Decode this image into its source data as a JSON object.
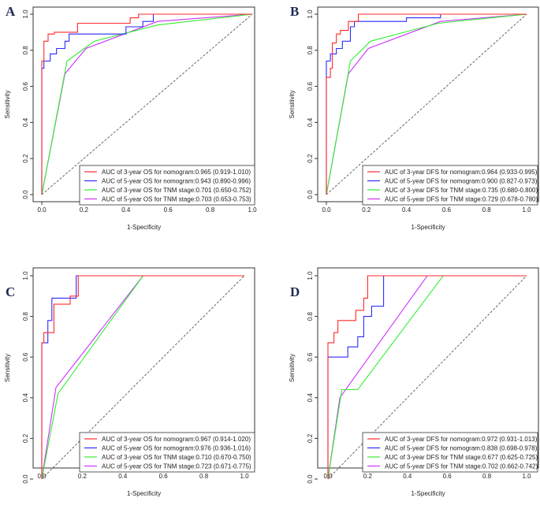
{
  "colors": {
    "red": "#ff2a2a",
    "blue": "#2a2aff",
    "green": "#33ee33",
    "purple": "#cc33ff",
    "diagonal": "#444444"
  },
  "chart_data": [
    {
      "panel": "A",
      "type": "line",
      "xlabel": "1-Specificity",
      "ylabel": "Sensitivity",
      "xlim": [
        0,
        1
      ],
      "ylim": [
        0,
        1
      ],
      "xticks": [
        "0.0",
        "0.2",
        "0.4",
        "0.6",
        "0.8",
        "1.0"
      ],
      "yticks": [
        "0.0",
        "0.2",
        "0.4",
        "0.6",
        "0.8",
        "1.0"
      ],
      "reference_line": [
        [
          0,
          0
        ],
        [
          1,
          1
        ]
      ],
      "legend_position": "bottom-right",
      "series": [
        {
          "name": "AUC of 3-year OS for nomogram:0.965 (0.919-1.010)",
          "color": "red",
          "x": [
            0,
            0,
            0.01,
            0.01,
            0.03,
            0.03,
            0.06,
            0.06,
            0.17,
            0.17,
            0.42,
            0.42,
            0.46,
            0.46,
            1.0
          ],
          "y": [
            0,
            0.74,
            0.74,
            0.85,
            0.85,
            0.89,
            0.89,
            0.9,
            0.9,
            0.95,
            0.95,
            0.98,
            0.98,
            1.0,
            1.0
          ]
        },
        {
          "name": "AUC of 5-year OS for nomogram:0.943 (0.890-0.996)",
          "color": "blue",
          "x": [
            0,
            0,
            0.01,
            0.01,
            0.04,
            0.04,
            0.07,
            0.07,
            0.11,
            0.11,
            0.13,
            0.13,
            0.4,
            0.4,
            0.48,
            0.48,
            0.53,
            0.53,
            1.0
          ],
          "y": [
            0,
            0.7,
            0.7,
            0.74,
            0.74,
            0.78,
            0.78,
            0.81,
            0.81,
            0.85,
            0.85,
            0.89,
            0.89,
            0.93,
            0.93,
            0.96,
            0.96,
            1.0,
            1.0
          ]
        },
        {
          "name": "AUC of 3-year OS for TNM stage:0.701 (0.650-0.752)",
          "color": "green",
          "x": [
            0,
            0.12,
            0.25,
            0.55,
            1.0
          ],
          "y": [
            0,
            0.74,
            0.85,
            0.94,
            1.0
          ]
        },
        {
          "name": "AUC of 5-year OS for TNM stage:0.703 (0.653-0.753)",
          "color": "purple",
          "x": [
            0,
            0.11,
            0.21,
            0.55,
            1.0
          ],
          "y": [
            0,
            0.67,
            0.81,
            0.96,
            1.0
          ]
        }
      ]
    },
    {
      "panel": "B",
      "type": "line",
      "xlabel": "1-Specificity",
      "ylabel": "Sensitivity",
      "xlim": [
        0,
        1
      ],
      "ylim": [
        0,
        1
      ],
      "xticks": [
        "0.0",
        "0.2",
        "0.4",
        "0.6",
        "0.8",
        "1.0"
      ],
      "yticks": [
        "0.0",
        "0.2",
        "0.4",
        "0.6",
        "0.8",
        "1.0"
      ],
      "reference_line": [
        [
          0,
          0
        ],
        [
          1,
          1
        ]
      ],
      "legend_position": "bottom-right",
      "series": [
        {
          "name": "AUC of 3-year DFS for nomogram:0.964 (0.933-0.995)",
          "color": "red",
          "x": [
            0,
            0,
            0.02,
            0.02,
            0.03,
            0.03,
            0.05,
            0.05,
            0.07,
            0.07,
            0.11,
            0.11,
            0.16,
            0.16,
            1.0
          ],
          "y": [
            0,
            0.65,
            0.65,
            0.7,
            0.7,
            0.84,
            0.84,
            0.89,
            0.89,
            0.91,
            0.91,
            0.96,
            0.96,
            1.0,
            1.0
          ]
        },
        {
          "name": "AUC of 5-year DFS for nomogram:0.900 (0.827-0.973)",
          "color": "blue",
          "x": [
            0,
            0,
            0.02,
            0.02,
            0.05,
            0.05,
            0.08,
            0.08,
            0.12,
            0.12,
            0.14,
            0.14,
            0.4,
            0.4,
            0.57,
            0.57,
            1.0
          ],
          "y": [
            0,
            0.74,
            0.74,
            0.78,
            0.78,
            0.81,
            0.81,
            0.85,
            0.85,
            0.93,
            0.93,
            0.96,
            0.96,
            0.98,
            0.98,
            1.0,
            1.0
          ]
        },
        {
          "name": "AUC of 3-year DFS for TNM stage:0.735 (0.680-0.800)",
          "color": "green",
          "x": [
            0,
            0.12,
            0.22,
            0.56,
            1.0
          ],
          "y": [
            0,
            0.74,
            0.85,
            0.95,
            1.0
          ]
        },
        {
          "name": "AUC of 5-year DFS for TNM stage:0.729 (0.678-0.780)",
          "color": "purple",
          "x": [
            0,
            0.11,
            0.21,
            0.57,
            1.0
          ],
          "y": [
            0,
            0.67,
            0.81,
            0.96,
            1.0
          ]
        }
      ]
    },
    {
      "panel": "C",
      "type": "line",
      "xlabel": "1-Specificity",
      "ylabel": "Sensitivity",
      "xlim": [
        0,
        1
      ],
      "ylim": [
        0,
        1
      ],
      "xticks": [
        "0.0",
        "0.2",
        "0.4",
        "0.6",
        "0.8",
        "1.0"
      ],
      "yticks": [
        "0.0",
        "0.2",
        "0.4",
        "0.6",
        "0.8",
        "1.0"
      ],
      "reference_line": [
        [
          0,
          0
        ],
        [
          1,
          1
        ]
      ],
      "legend_position": "bottom-right",
      "series": [
        {
          "name": "AUC of 3-year OS for nomogram:0.967 (0.914-1.020)",
          "color": "red",
          "x": [
            0,
            0,
            0.01,
            0.01,
            0.06,
            0.06,
            0.14,
            0.14,
            0.18,
            0.18,
            1.0
          ],
          "y": [
            0,
            0.67,
            0.67,
            0.72,
            0.72,
            0.86,
            0.86,
            0.9,
            0.9,
            1.0,
            1.0
          ]
        },
        {
          "name": "AUC of 5-year OS for nomogram:0.976 (0.936-1.016)",
          "color": "blue",
          "x": [
            0,
            0,
            0.03,
            0.03,
            0.05,
            0.05,
            0.13,
            0.13,
            0.17,
            0.17,
            1.0
          ],
          "y": [
            0,
            0.67,
            0.67,
            0.78,
            0.78,
            0.89,
            0.89,
            0.89,
            0.89,
            1.0,
            1.0
          ]
        },
        {
          "name": "AUC of 3-year OS for TNM stage:0.710 (0.670-0.750)",
          "color": "green",
          "x": [
            0,
            0.08,
            0.5,
            1.0
          ],
          "y": [
            0,
            0.42,
            1.0,
            1.0
          ]
        },
        {
          "name": "AUC of 5-year OS for TNM stage:0.723 (0.671-0.775)",
          "color": "purple",
          "x": [
            0,
            0.07,
            0.5,
            1.0
          ],
          "y": [
            0,
            0.45,
            1.0,
            1.0
          ]
        }
      ]
    },
    {
      "panel": "D",
      "type": "line",
      "xlabel": "1-Specificity",
      "ylabel": "Sensitivity",
      "xlim": [
        0,
        1
      ],
      "ylim": [
        0,
        1
      ],
      "xticks": [
        "0.0",
        "0.2",
        "0.4",
        "0.6",
        "0.8",
        "1.0"
      ],
      "yticks": [
        "0.0",
        "0.2",
        "0.4",
        "0.6",
        "0.8",
        "1.0"
      ],
      "reference_line": [
        [
          0,
          0
        ],
        [
          1,
          1
        ]
      ],
      "legend_position": "bottom-right",
      "series": [
        {
          "name": "AUC of 3-year DFS for nomogram:0.972 (0.931-1.013)",
          "color": "red",
          "x": [
            0,
            0,
            0.03,
            0.03,
            0.05,
            0.05,
            0.07,
            0.07,
            0.14,
            0.14,
            0.18,
            0.18,
            0.2,
            0.2,
            1.0
          ],
          "y": [
            0,
            0.67,
            0.67,
            0.72,
            0.72,
            0.78,
            0.78,
            0.78,
            0.78,
            0.83,
            0.83,
            0.89,
            0.89,
            1.0,
            1.0
          ]
        },
        {
          "name": "AUC of 5-year DFS for nomogram:0.838 (0.698-0.978)",
          "color": "blue",
          "x": [
            0,
            0,
            0.1,
            0.1,
            0.15,
            0.15,
            0.18,
            0.18,
            0.22,
            0.22,
            0.28,
            0.28,
            1.0
          ],
          "y": [
            0,
            0.6,
            0.6,
            0.65,
            0.65,
            0.7,
            0.7,
            0.8,
            0.8,
            0.85,
            0.85,
            1.0,
            1.0
          ]
        },
        {
          "name": "AUC of 3-year DFS for TNM stage:0.677 (0.625-0.725)",
          "color": "green",
          "x": [
            0,
            0.07,
            0.15,
            0.58,
            1.0
          ],
          "y": [
            0,
            0.44,
            0.44,
            1.0,
            1.0
          ]
        },
        {
          "name": "AUC of 5-year DFS for TNM stage:0.702 (0.662-0.742)",
          "color": "purple",
          "x": [
            0,
            0.06,
            0.5,
            1.0
          ],
          "y": [
            0,
            0.4,
            1.0,
            1.0
          ]
        }
      ]
    }
  ]
}
